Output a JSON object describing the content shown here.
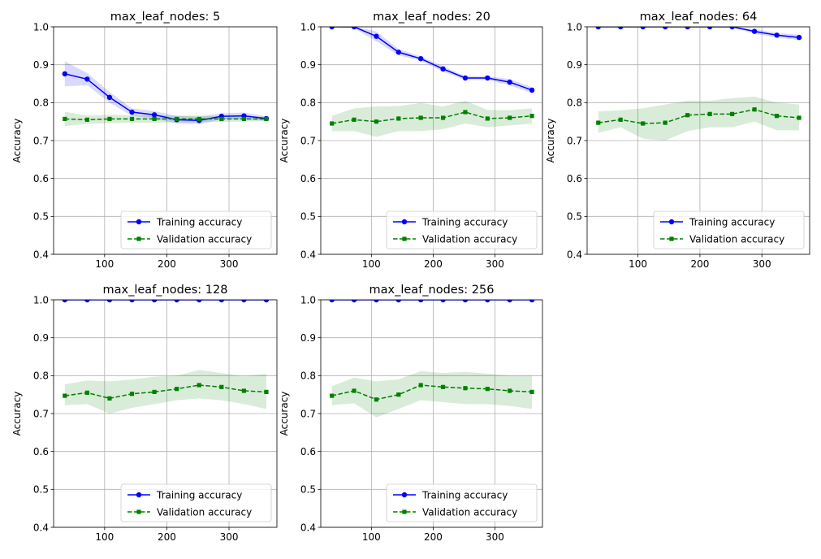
{
  "chart_data": [
    {
      "type": "line",
      "title": "max_leaf_nodes: 5",
      "ylabel": "Accuracy",
      "xlabel": "",
      "ylim": [
        0.4,
        1.0
      ],
      "xlim": [
        18,
        377
      ],
      "xticks": [
        100,
        200,
        300
      ],
      "yticks": [
        0.4,
        0.5,
        0.6,
        0.7,
        0.8,
        0.9,
        1.0
      ],
      "grid": true,
      "legend_position": "lower right",
      "x": [
        36,
        72,
        108,
        144,
        180,
        216,
        252,
        288,
        324,
        360
      ],
      "series": [
        {
          "name": "Training accuracy",
          "color": "#0000ff",
          "marker": "circle",
          "linestyle": "solid",
          "values": [
            0.876,
            0.862,
            0.814,
            0.775,
            0.768,
            0.755,
            0.753,
            0.764,
            0.765,
            0.758
          ],
          "lower": [
            0.843,
            0.846,
            0.8,
            0.765,
            0.758,
            0.745,
            0.743,
            0.756,
            0.756,
            0.752
          ],
          "upper": [
            0.909,
            0.878,
            0.828,
            0.785,
            0.778,
            0.765,
            0.763,
            0.772,
            0.774,
            0.764
          ]
        },
        {
          "name": "Validation accuracy",
          "color": "#008000",
          "marker": "square",
          "linestyle": "dashed",
          "values": [
            0.757,
            0.755,
            0.757,
            0.757,
            0.757,
            0.757,
            0.757,
            0.757,
            0.757,
            0.757
          ],
          "lower": [
            0.738,
            0.744,
            0.746,
            0.747,
            0.747,
            0.748,
            0.748,
            0.749,
            0.75,
            0.751
          ],
          "upper": [
            0.776,
            0.766,
            0.768,
            0.767,
            0.767,
            0.766,
            0.766,
            0.765,
            0.764,
            0.763
          ]
        }
      ]
    },
    {
      "type": "line",
      "title": "max_leaf_nodes: 20",
      "ylabel": "Accuracy",
      "xlabel": "",
      "ylim": [
        0.4,
        1.0
      ],
      "xlim": [
        18,
        377
      ],
      "xticks": [
        100,
        200,
        300
      ],
      "yticks": [
        0.4,
        0.5,
        0.6,
        0.7,
        0.8,
        0.9,
        1.0
      ],
      "grid": true,
      "legend_position": "lower right",
      "x": [
        36,
        72,
        108,
        144,
        180,
        216,
        252,
        288,
        324,
        360
      ],
      "series": [
        {
          "name": "Training accuracy",
          "color": "#0000ff",
          "marker": "circle",
          "linestyle": "solid",
          "values": [
            1.0,
            1.0,
            0.975,
            0.933,
            0.916,
            0.889,
            0.865,
            0.865,
            0.854,
            0.833
          ],
          "lower": [
            1.0,
            0.996,
            0.962,
            0.925,
            0.91,
            0.882,
            0.86,
            0.86,
            0.846,
            0.825
          ],
          "upper": [
            1.0,
            1.0,
            0.988,
            0.941,
            0.922,
            0.896,
            0.87,
            0.87,
            0.862,
            0.841
          ]
        },
        {
          "name": "Validation accuracy",
          "color": "#008000",
          "marker": "square",
          "linestyle": "dashed",
          "values": [
            0.745,
            0.755,
            0.75,
            0.758,
            0.76,
            0.76,
            0.775,
            0.758,
            0.76,
            0.765
          ],
          "lower": [
            0.725,
            0.725,
            0.71,
            0.725,
            0.725,
            0.73,
            0.745,
            0.735,
            0.74,
            0.745
          ],
          "upper": [
            0.765,
            0.785,
            0.79,
            0.791,
            0.799,
            0.79,
            0.805,
            0.781,
            0.78,
            0.785
          ]
        }
      ]
    },
    {
      "type": "line",
      "title": "max_leaf_nodes: 64",
      "ylabel": "Accuracy",
      "xlabel": "",
      "ylim": [
        0.4,
        1.0
      ],
      "xlim": [
        18,
        377
      ],
      "xticks": [
        100,
        200,
        300
      ],
      "yticks": [
        0.4,
        0.5,
        0.6,
        0.7,
        0.8,
        0.9,
        1.0
      ],
      "grid": true,
      "legend_position": "lower right",
      "x": [
        36,
        72,
        108,
        144,
        180,
        216,
        252,
        288,
        324,
        360
      ],
      "series": [
        {
          "name": "Training accuracy",
          "color": "#0000ff",
          "marker": "circle",
          "linestyle": "solid",
          "values": [
            1.0,
            1.0,
            1.0,
            1.0,
            1.0,
            1.0,
            1.0,
            0.988,
            0.978,
            0.972
          ],
          "lower": [
            1.0,
            1.0,
            1.0,
            1.0,
            1.0,
            1.0,
            0.998,
            0.982,
            0.972,
            0.965
          ],
          "upper": [
            1.0,
            1.0,
            1.0,
            1.0,
            1.0,
            1.0,
            1.0,
            0.994,
            0.984,
            0.979
          ]
        },
        {
          "name": "Validation accuracy",
          "color": "#008000",
          "marker": "square",
          "linestyle": "dashed",
          "values": [
            0.747,
            0.755,
            0.745,
            0.747,
            0.767,
            0.77,
            0.77,
            0.782,
            0.765,
            0.76
          ],
          "lower": [
            0.72,
            0.735,
            0.705,
            0.7,
            0.725,
            0.735,
            0.735,
            0.75,
            0.727,
            0.727
          ],
          "upper": [
            0.777,
            0.78,
            0.785,
            0.795,
            0.805,
            0.805,
            0.812,
            0.816,
            0.8,
            0.795
          ]
        }
      ]
    },
    {
      "type": "line",
      "title": "max_leaf_nodes: 128",
      "ylabel": "Accuracy",
      "xlabel": "",
      "ylim": [
        0.4,
        1.0
      ],
      "xlim": [
        18,
        377
      ],
      "xticks": [
        100,
        200,
        300
      ],
      "yticks": [
        0.4,
        0.5,
        0.6,
        0.7,
        0.8,
        0.9,
        1.0
      ],
      "grid": true,
      "legend_position": "lower right",
      "x": [
        36,
        72,
        108,
        144,
        180,
        216,
        252,
        288,
        324,
        360
      ],
      "series": [
        {
          "name": "Training accuracy",
          "color": "#0000ff",
          "marker": "circle",
          "linestyle": "solid",
          "values": [
            1.0,
            1.0,
            1.0,
            1.0,
            1.0,
            1.0,
            1.0,
            1.0,
            1.0,
            1.0
          ],
          "lower": [
            1.0,
            1.0,
            1.0,
            1.0,
            1.0,
            1.0,
            1.0,
            1.0,
            1.0,
            1.0
          ],
          "upper": [
            1.0,
            1.0,
            1.0,
            1.0,
            1.0,
            1.0,
            1.0,
            1.0,
            1.0,
            1.0
          ]
        },
        {
          "name": "Validation accuracy",
          "color": "#008000",
          "marker": "square",
          "linestyle": "dashed",
          "values": [
            0.747,
            0.755,
            0.74,
            0.752,
            0.757,
            0.765,
            0.775,
            0.77,
            0.76,
            0.757
          ],
          "lower": [
            0.722,
            0.725,
            0.7,
            0.715,
            0.725,
            0.735,
            0.74,
            0.735,
            0.725,
            0.712
          ],
          "upper": [
            0.777,
            0.787,
            0.785,
            0.79,
            0.797,
            0.8,
            0.815,
            0.807,
            0.798,
            0.805
          ]
        }
      ]
    },
    {
      "type": "line",
      "title": "max_leaf_nodes: 256",
      "ylabel": "Accuracy",
      "xlabel": "",
      "ylim": [
        0.4,
        1.0
      ],
      "xlim": [
        18,
        377
      ],
      "xticks": [
        100,
        200,
        300
      ],
      "yticks": [
        0.4,
        0.5,
        0.6,
        0.7,
        0.8,
        0.9,
        1.0
      ],
      "grid": true,
      "legend_position": "lower right",
      "x": [
        36,
        72,
        108,
        144,
        180,
        216,
        252,
        288,
        324,
        360
      ],
      "series": [
        {
          "name": "Training accuracy",
          "color": "#0000ff",
          "marker": "circle",
          "linestyle": "solid",
          "values": [
            1.0,
            1.0,
            1.0,
            1.0,
            1.0,
            1.0,
            1.0,
            1.0,
            1.0,
            1.0
          ],
          "lower": [
            1.0,
            1.0,
            1.0,
            1.0,
            1.0,
            1.0,
            1.0,
            1.0,
            1.0,
            1.0
          ],
          "upper": [
            1.0,
            1.0,
            1.0,
            1.0,
            1.0,
            1.0,
            1.0,
            1.0,
            1.0,
            1.0
          ]
        },
        {
          "name": "Validation accuracy",
          "color": "#008000",
          "marker": "square",
          "linestyle": "dashed",
          "values": [
            0.747,
            0.76,
            0.737,
            0.75,
            0.775,
            0.77,
            0.767,
            0.765,
            0.76,
            0.757
          ],
          "lower": [
            0.722,
            0.727,
            0.69,
            0.712,
            0.735,
            0.73,
            0.725,
            0.725,
            0.72,
            0.712
          ],
          "upper": [
            0.772,
            0.795,
            0.785,
            0.79,
            0.812,
            0.807,
            0.81,
            0.805,
            0.8,
            0.8
          ]
        }
      ]
    }
  ]
}
